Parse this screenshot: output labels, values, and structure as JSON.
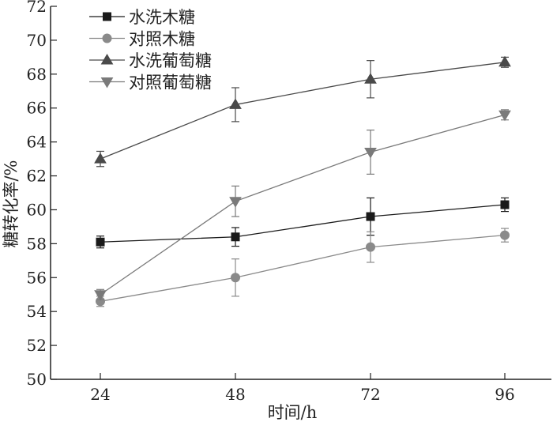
{
  "chart_data": {
    "type": "line",
    "xlabel": "时间/h",
    "ylabel": "糖转化率/%",
    "categories": [
      "24",
      "48",
      "72",
      "96"
    ],
    "x": [
      24,
      48,
      72,
      96
    ],
    "ylim": [
      50,
      72
    ],
    "yticks": [
      50,
      52,
      54,
      56,
      58,
      60,
      62,
      64,
      66,
      68,
      70,
      72
    ],
    "grid": false,
    "legend_position": "top-left",
    "series": [
      {
        "name": "水洗木糖",
        "marker": "square",
        "color": "#1a1a1a",
        "values": [
          58.1,
          58.4,
          59.6,
          60.3
        ],
        "errors": [
          0.35,
          0.55,
          1.1,
          0.4
        ]
      },
      {
        "name": "对照木糖",
        "marker": "circle",
        "color": "#8a8a8a",
        "values": [
          54.6,
          56.0,
          57.8,
          58.5
        ],
        "errors": [
          0.3,
          1.1,
          0.9,
          0.4
        ]
      },
      {
        "name": "水洗葡萄糖",
        "marker": "triangle-up",
        "color": "#4a4a4a",
        "values": [
          63.0,
          66.2,
          67.7,
          68.7
        ],
        "errors": [
          0.45,
          1.0,
          1.1,
          0.3
        ]
      },
      {
        "name": "对照葡萄糖",
        "marker": "triangle-down",
        "color": "#7a7a7a",
        "values": [
          55.0,
          60.5,
          63.4,
          65.6
        ],
        "errors": [
          0.3,
          0.9,
          1.3,
          0.3
        ]
      }
    ]
  }
}
